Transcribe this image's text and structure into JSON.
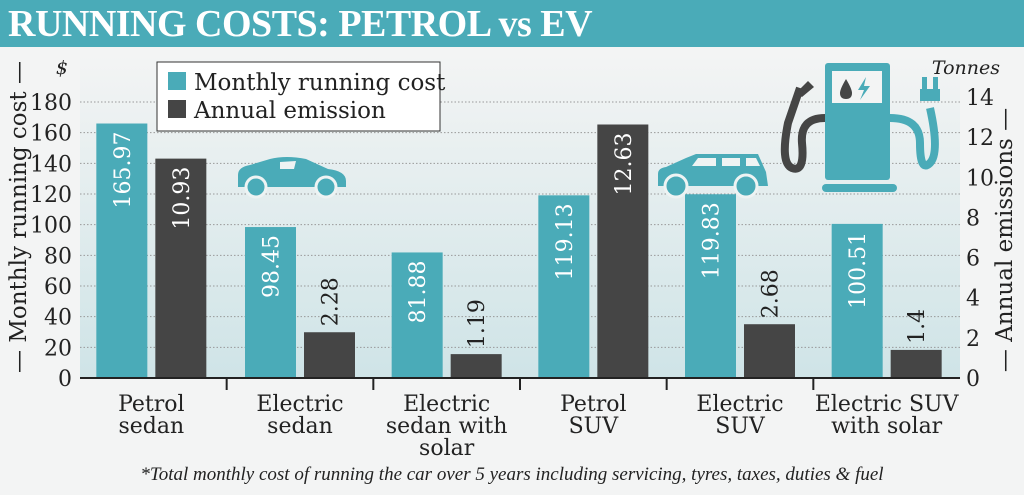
{
  "title": "RUNNING COSTS: PETROL vs EV",
  "footnote": "*Total monthly cost of running the car over 5 years including servicing, tyres, taxes, duties & fuel",
  "colors": {
    "cost": "#4aabb8",
    "emission": "#454545",
    "title_bar": "#4aabb8"
  },
  "icons": [
    "sedan-car-icon",
    "suv-car-icon",
    "fuel-ev-pump-icon"
  ],
  "chart_data": {
    "type": "bar",
    "categories": [
      "Petrol\nsedan",
      "Electric\nsedan",
      "Electric\nsedan with\nsolar",
      "Petrol\nSUV",
      "Electric\nSUV",
      "Electric SUV\nwith solar"
    ],
    "series": [
      {
        "name": "Monthly running cost",
        "axis": "left",
        "values": [
          165.97,
          98.45,
          81.88,
          119.13,
          119.83,
          100.51
        ],
        "labels": [
          "165.97",
          "98.45",
          "81.88",
          "119.13",
          "119.83",
          "100.51"
        ]
      },
      {
        "name": "Annual emission",
        "axis": "right",
        "values": [
          10.93,
          2.28,
          1.19,
          12.63,
          2.68,
          1.4
        ],
        "labels": [
          "10.93",
          "2.28",
          "1.19",
          "12.63",
          "2.68",
          "1.4"
        ]
      }
    ],
    "ylabel": "Monthly running cost",
    "yunit": "$",
    "ylim": [
      0,
      180
    ],
    "yticks": [
      0,
      20,
      40,
      60,
      80,
      100,
      120,
      140,
      160,
      180
    ],
    "y2label": "Annual emissions",
    "y2unit": "Tonnes",
    "y2lim": [
      0,
      14
    ],
    "y2ticks": [
      0,
      2,
      4,
      6,
      8,
      10,
      12,
      14
    ],
    "grid": true,
    "legend": "top-left"
  }
}
